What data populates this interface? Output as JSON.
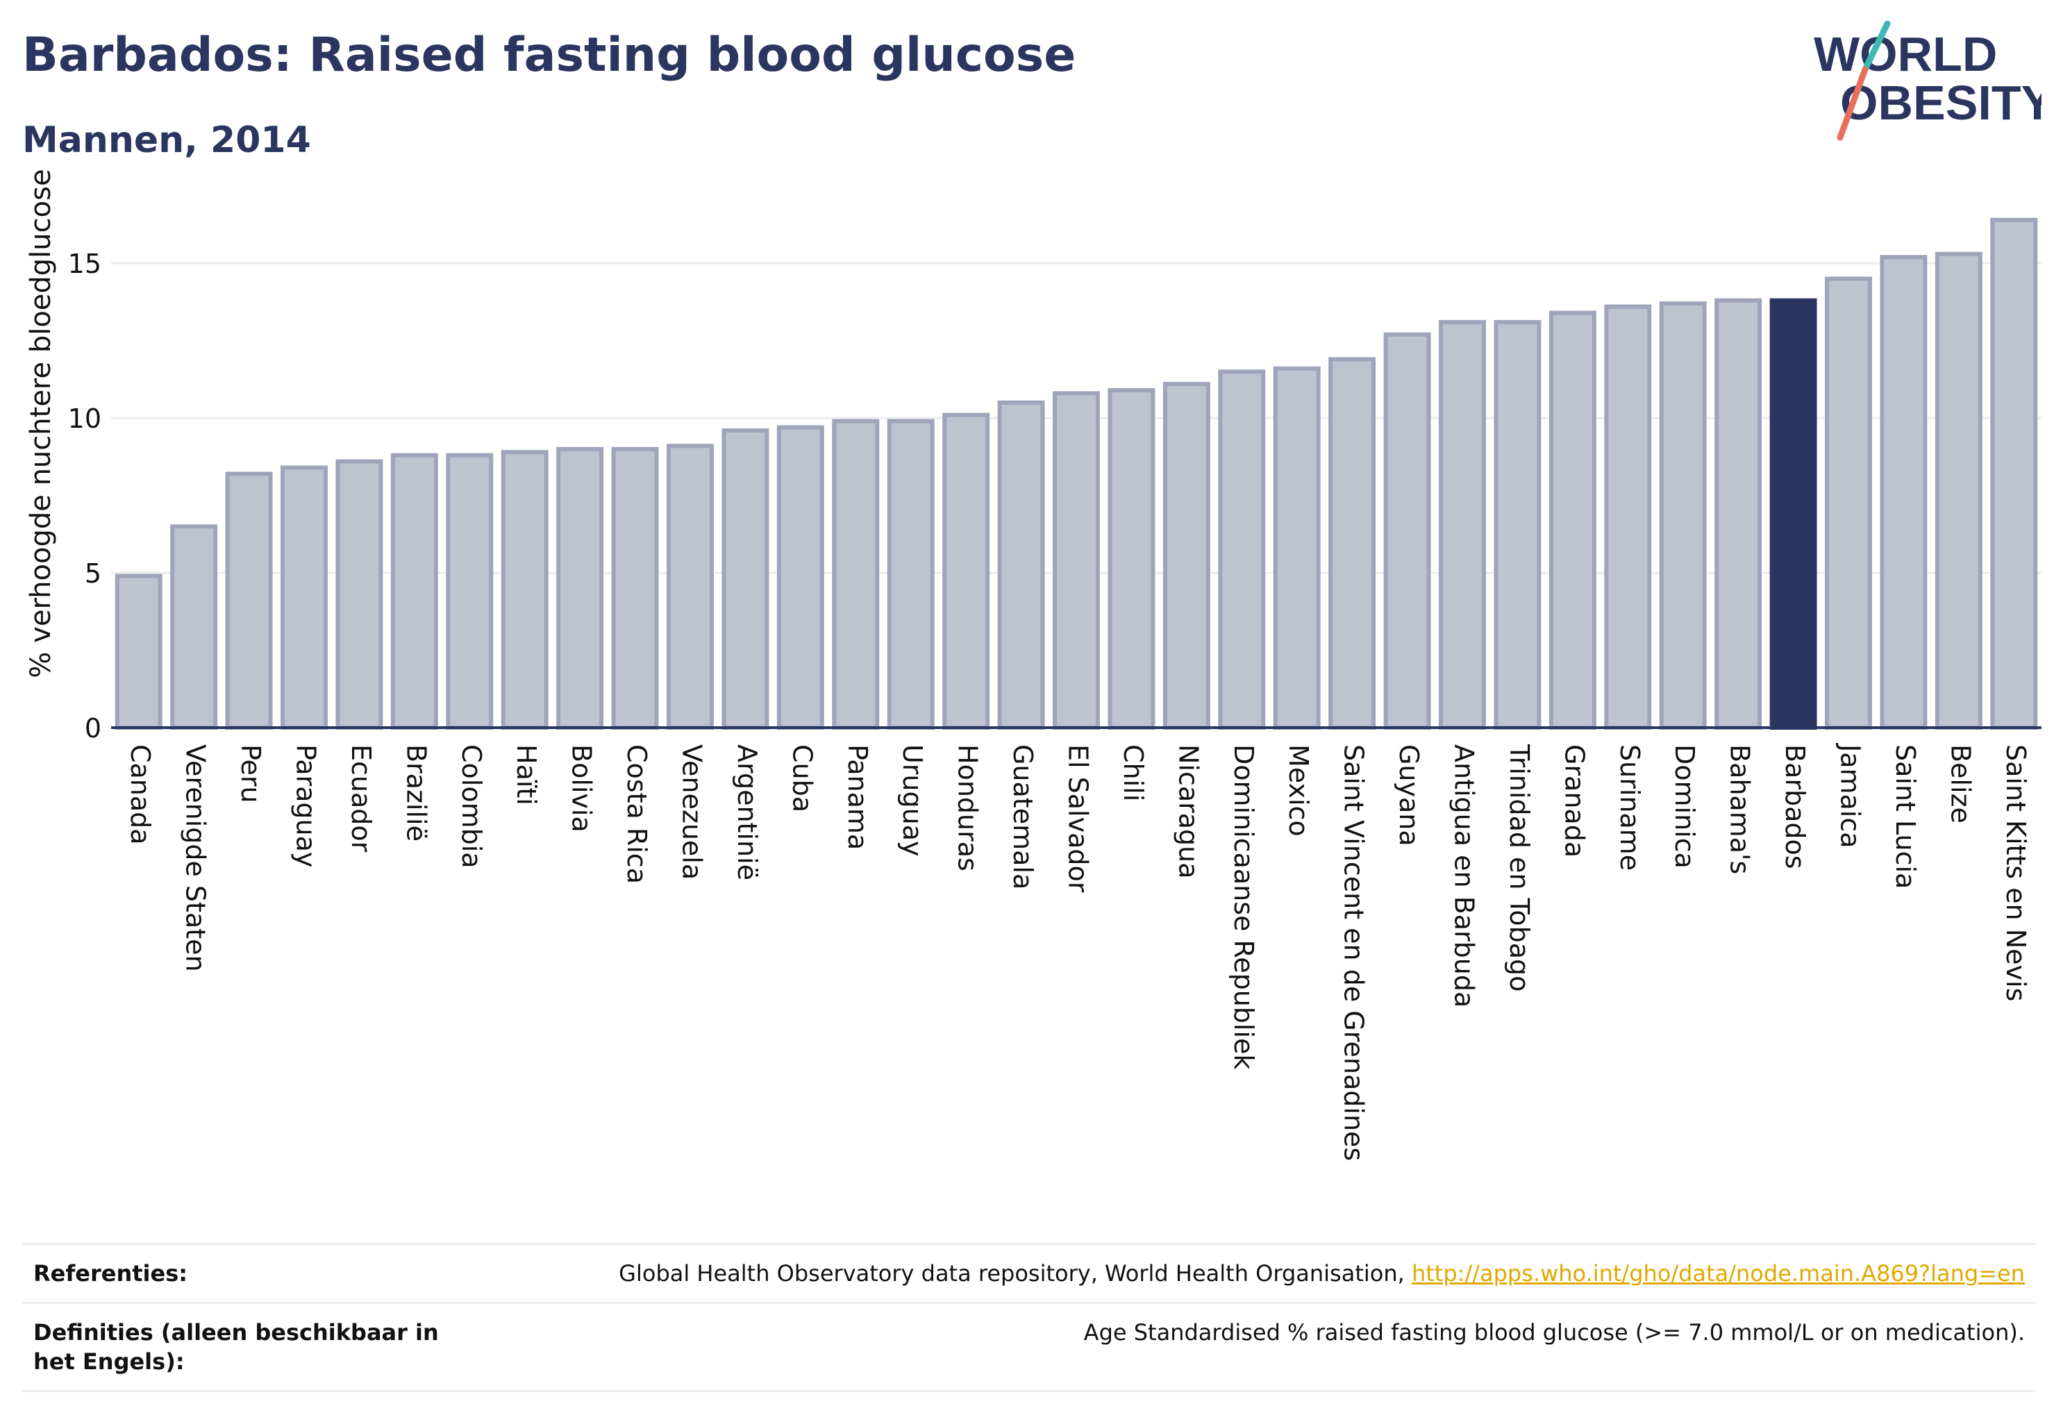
{
  "header": {
    "title": "Barbados: Raised fasting blood glucose",
    "subtitle": "Mannen, 2014"
  },
  "logo": {
    "line1": "WORLD",
    "line2": "OBESITY"
  },
  "chart_data": {
    "type": "bar",
    "ylabel": "% verhoogde nuchtere bloedglucose",
    "ylim": [
      0,
      17
    ],
    "yticks": [
      0,
      5,
      10,
      15
    ],
    "grid": true,
    "highlight": "Barbados",
    "colors": {
      "bar": "#bfc2cf",
      "bar_edge": "#9fa4bb",
      "highlight": "#2b3660"
    },
    "categories": [
      "Canada",
      "Verenigde Staten",
      "Peru",
      "Paraguay",
      "Ecuador",
      "Brazilië",
      "Colombia",
      "Haïti",
      "Bolivia",
      "Costa Rica",
      "Venezuela",
      "Argentinië",
      "Cuba",
      "Panama",
      "Uruguay",
      "Honduras",
      "Guatemala",
      "El Salvador",
      "Chili",
      "Nicaragua",
      "Dominicaanse Republiek",
      "Mexico",
      "Saint Vincent en de Grenadines",
      "Guyana",
      "Antigua en Barbuda",
      "Trinidad en Tobago",
      "Granada",
      "Suriname",
      "Dominica",
      "Bahama's",
      "Barbados",
      "Jamaica",
      "Saint Lucia",
      "Belize",
      "Saint Kitts en Nevis"
    ],
    "values": [
      4.9,
      6.5,
      8.2,
      8.4,
      8.6,
      8.8,
      8.8,
      8.9,
      9.0,
      9.0,
      9.1,
      9.6,
      9.7,
      9.9,
      9.9,
      10.1,
      10.5,
      10.8,
      10.9,
      11.1,
      11.5,
      11.6,
      11.9,
      12.7,
      13.1,
      13.1,
      13.4,
      13.6,
      13.7,
      13.8,
      13.8,
      14.5,
      15.2,
      15.3,
      16.4
    ]
  },
  "references": {
    "ref_label": "Referenties:",
    "ref_text": "Global Health Observatory data repository, World Health Organisation,",
    "ref_link": "http://apps.who.int/gho/data/node.main.A869?lang=en",
    "def_label": "Definities (alleen beschikbaar in het Engels):",
    "def_text": "Age Standardised % raised fasting blood glucose (>= 7.0 mmol/L or on medication)."
  }
}
